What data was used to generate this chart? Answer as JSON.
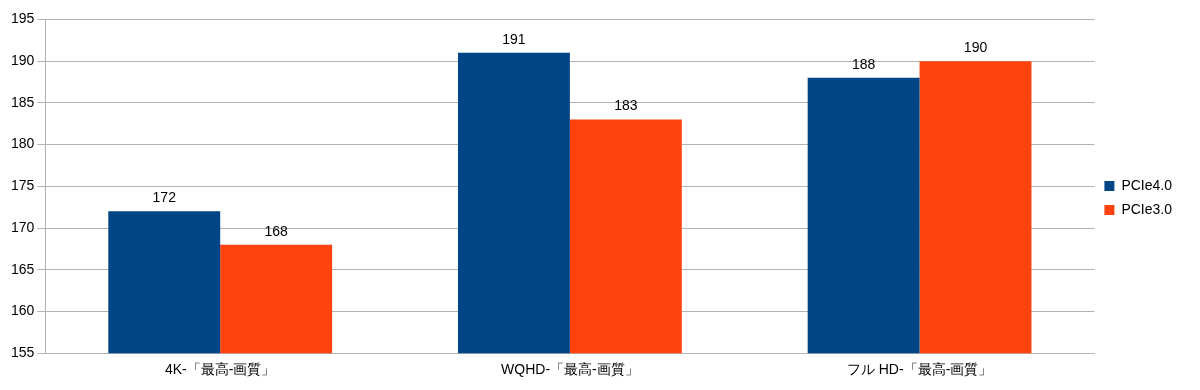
{
  "chart_data": {
    "type": "bar",
    "categories": [
      "4K-「最高-画質」",
      "WQHD-「最高-画質」",
      "フル HD-「最高-画質」"
    ],
    "series": [
      {
        "name": "PCIe4.0",
        "color": "#004586",
        "values": [
          172,
          191,
          188
        ]
      },
      {
        "name": "PCIe3.0",
        "color": "#ff420e",
        "values": [
          168,
          183,
          190
        ]
      }
    ],
    "ylim": [
      155,
      195
    ],
    "yticks": [
      155,
      160,
      165,
      170,
      175,
      180,
      185,
      190,
      195
    ],
    "grid": "y",
    "legend": "right",
    "data_labels": true
  }
}
